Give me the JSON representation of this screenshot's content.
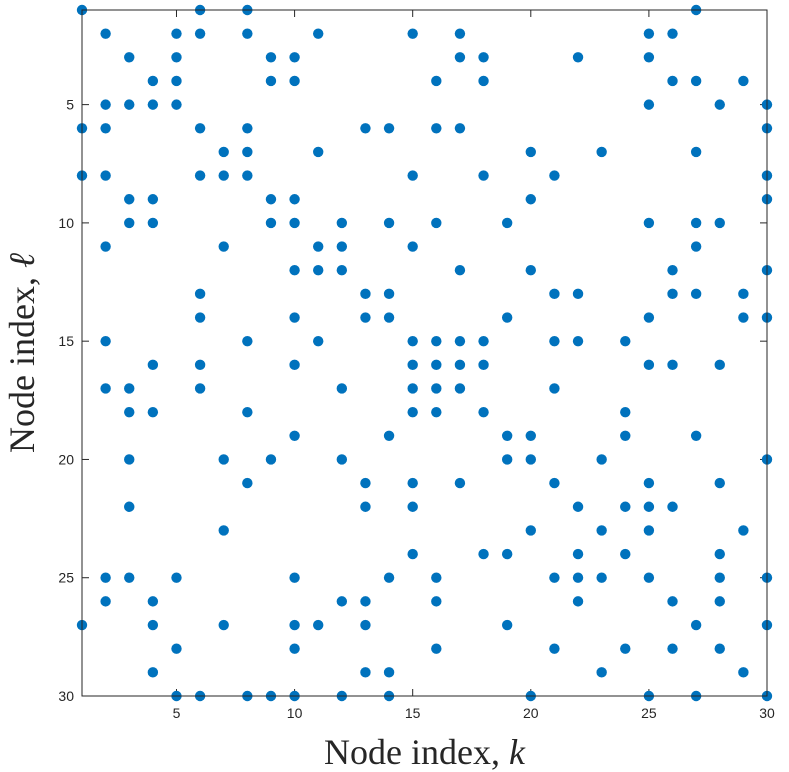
{
  "chart_data": {
    "type": "scatter",
    "xlabel": "Node index, ",
    "xlabel_var": "k",
    "ylabel": "Node index, ",
    "ylabel_var": "ℓ",
    "xlim": [
      1,
      30
    ],
    "ylim": [
      1,
      30
    ],
    "y_reversed": true,
    "grid": false,
    "xticks": [
      5,
      10,
      15,
      20,
      25,
      30
    ],
    "yticks": [
      5,
      10,
      15,
      20,
      25,
      30
    ],
    "xtick_labels": [
      "5",
      "10",
      "15",
      "20",
      "25",
      "30"
    ],
    "ytick_labels": [
      "5",
      "10",
      "15",
      "20",
      "25",
      "30"
    ],
    "marker_color": "#0072BD",
    "points": [
      [
        1,
        1
      ],
      [
        6,
        1
      ],
      [
        8,
        1
      ],
      [
        27,
        1
      ],
      [
        2,
        2
      ],
      [
        5,
        2
      ],
      [
        6,
        2
      ],
      [
        8,
        2
      ],
      [
        11,
        2
      ],
      [
        15,
        2
      ],
      [
        17,
        2
      ],
      [
        25,
        2
      ],
      [
        26,
        2
      ],
      [
        3,
        3
      ],
      [
        5,
        3
      ],
      [
        9,
        3
      ],
      [
        10,
        3
      ],
      [
        17,
        3
      ],
      [
        18,
        3
      ],
      [
        22,
        3
      ],
      [
        25,
        3
      ],
      [
        4,
        4
      ],
      [
        5,
        4
      ],
      [
        9,
        4
      ],
      [
        10,
        4
      ],
      [
        16,
        4
      ],
      [
        18,
        4
      ],
      [
        26,
        4
      ],
      [
        27,
        4
      ],
      [
        29,
        4
      ],
      [
        2,
        5
      ],
      [
        3,
        5
      ],
      [
        4,
        5
      ],
      [
        5,
        5
      ],
      [
        25,
        5
      ],
      [
        28,
        5
      ],
      [
        30,
        5
      ],
      [
        1,
        6
      ],
      [
        2,
        6
      ],
      [
        6,
        6
      ],
      [
        8,
        6
      ],
      [
        13,
        6
      ],
      [
        14,
        6
      ],
      [
        16,
        6
      ],
      [
        17,
        6
      ],
      [
        30,
        6
      ],
      [
        7,
        7
      ],
      [
        8,
        7
      ],
      [
        11,
        7
      ],
      [
        20,
        7
      ],
      [
        23,
        7
      ],
      [
        27,
        7
      ],
      [
        1,
        8
      ],
      [
        2,
        8
      ],
      [
        6,
        8
      ],
      [
        7,
        8
      ],
      [
        8,
        8
      ],
      [
        15,
        8
      ],
      [
        18,
        8
      ],
      [
        21,
        8
      ],
      [
        30,
        8
      ],
      [
        3,
        9
      ],
      [
        4,
        9
      ],
      [
        9,
        9
      ],
      [
        10,
        9
      ],
      [
        20,
        9
      ],
      [
        30,
        9
      ],
      [
        3,
        10
      ],
      [
        4,
        10
      ],
      [
        9,
        10
      ],
      [
        10,
        10
      ],
      [
        12,
        10
      ],
      [
        14,
        10
      ],
      [
        16,
        10
      ],
      [
        19,
        10
      ],
      [
        25,
        10
      ],
      [
        27,
        10
      ],
      [
        28,
        10
      ],
      [
        2,
        11
      ],
      [
        7,
        11
      ],
      [
        11,
        11
      ],
      [
        12,
        11
      ],
      [
        15,
        11
      ],
      [
        27,
        11
      ],
      [
        10,
        12
      ],
      [
        11,
        12
      ],
      [
        12,
        12
      ],
      [
        17,
        12
      ],
      [
        20,
        12
      ],
      [
        26,
        12
      ],
      [
        30,
        12
      ],
      [
        6,
        13
      ],
      [
        13,
        13
      ],
      [
        14,
        13
      ],
      [
        21,
        13
      ],
      [
        22,
        13
      ],
      [
        26,
        13
      ],
      [
        27,
        13
      ],
      [
        29,
        13
      ],
      [
        6,
        14
      ],
      [
        10,
        14
      ],
      [
        13,
        14
      ],
      [
        14,
        14
      ],
      [
        19,
        14
      ],
      [
        25,
        14
      ],
      [
        29,
        14
      ],
      [
        30,
        14
      ],
      [
        2,
        15
      ],
      [
        8,
        15
      ],
      [
        11,
        15
      ],
      [
        15,
        15
      ],
      [
        16,
        15
      ],
      [
        17,
        15
      ],
      [
        18,
        15
      ],
      [
        21,
        15
      ],
      [
        22,
        15
      ],
      [
        24,
        15
      ],
      [
        4,
        16
      ],
      [
        6,
        16
      ],
      [
        10,
        16
      ],
      [
        15,
        16
      ],
      [
        16,
        16
      ],
      [
        17,
        16
      ],
      [
        18,
        16
      ],
      [
        25,
        16
      ],
      [
        26,
        16
      ],
      [
        28,
        16
      ],
      [
        2,
        17
      ],
      [
        3,
        17
      ],
      [
        6,
        17
      ],
      [
        12,
        17
      ],
      [
        15,
        17
      ],
      [
        16,
        17
      ],
      [
        17,
        17
      ],
      [
        21,
        17
      ],
      [
        3,
        18
      ],
      [
        4,
        18
      ],
      [
        8,
        18
      ],
      [
        15,
        18
      ],
      [
        16,
        18
      ],
      [
        18,
        18
      ],
      [
        24,
        18
      ],
      [
        10,
        19
      ],
      [
        14,
        19
      ],
      [
        19,
        19
      ],
      [
        20,
        19
      ],
      [
        24,
        19
      ],
      [
        27,
        19
      ],
      [
        3,
        20
      ],
      [
        7,
        20
      ],
      [
        9,
        20
      ],
      [
        12,
        20
      ],
      [
        19,
        20
      ],
      [
        20,
        20
      ],
      [
        23,
        20
      ],
      [
        30,
        20
      ],
      [
        8,
        21
      ],
      [
        13,
        21
      ],
      [
        15,
        21
      ],
      [
        17,
        21
      ],
      [
        21,
        21
      ],
      [
        25,
        21
      ],
      [
        28,
        21
      ],
      [
        3,
        22
      ],
      [
        13,
        22
      ],
      [
        15,
        22
      ],
      [
        22,
        22
      ],
      [
        24,
        22
      ],
      [
        25,
        22
      ],
      [
        26,
        22
      ],
      [
        7,
        23
      ],
      [
        20,
        23
      ],
      [
        23,
        23
      ],
      [
        25,
        23
      ],
      [
        29,
        23
      ],
      [
        15,
        24
      ],
      [
        18,
        24
      ],
      [
        19,
        24
      ],
      [
        22,
        24
      ],
      [
        24,
        24
      ],
      [
        28,
        24
      ],
      [
        2,
        25
      ],
      [
        3,
        25
      ],
      [
        5,
        25
      ],
      [
        10,
        25
      ],
      [
        14,
        25
      ],
      [
        16,
        25
      ],
      [
        21,
        25
      ],
      [
        22,
        25
      ],
      [
        23,
        25
      ],
      [
        25,
        25
      ],
      [
        28,
        25
      ],
      [
        30,
        25
      ],
      [
        2,
        26
      ],
      [
        4,
        26
      ],
      [
        12,
        26
      ],
      [
        13,
        26
      ],
      [
        16,
        26
      ],
      [
        22,
        26
      ],
      [
        26,
        26
      ],
      [
        28,
        26
      ],
      [
        1,
        27
      ],
      [
        4,
        27
      ],
      [
        7,
        27
      ],
      [
        10,
        27
      ],
      [
        11,
        27
      ],
      [
        13,
        27
      ],
      [
        19,
        27
      ],
      [
        27,
        27
      ],
      [
        30,
        27
      ],
      [
        5,
        28
      ],
      [
        10,
        28
      ],
      [
        16,
        28
      ],
      [
        21,
        28
      ],
      [
        24,
        28
      ],
      [
        26,
        28
      ],
      [
        28,
        28
      ],
      [
        4,
        29
      ],
      [
        13,
        29
      ],
      [
        14,
        29
      ],
      [
        23,
        29
      ],
      [
        29,
        29
      ],
      [
        5,
        30
      ],
      [
        6,
        30
      ],
      [
        8,
        30
      ],
      [
        9,
        30
      ],
      [
        10,
        30
      ],
      [
        12,
        30
      ],
      [
        14,
        30
      ],
      [
        20,
        30
      ],
      [
        25,
        30
      ],
      [
        27,
        30
      ],
      [
        30,
        30
      ]
    ]
  }
}
